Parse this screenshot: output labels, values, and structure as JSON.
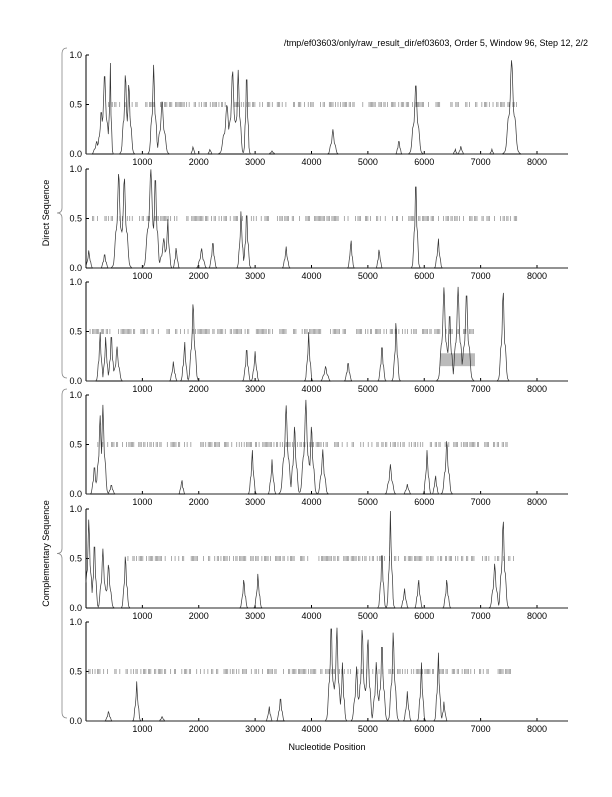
{
  "title": "/tmp/ef03603/only/raw_result_dir/ef03603, Order 5, Window 96, Step 12, 2/2",
  "xlabel": "Nucleotide Position",
  "group_labels": [
    "Direct Sequence",
    "Complementary Sequence"
  ],
  "chart_data": {
    "type": "line",
    "title": "/tmp/ef03603/only/raw_result_dir/ef03603, Order 5, Window 96, Step 12, 2/2",
    "xlabel": "Nucleotide Position",
    "xlim": [
      0,
      8550
    ],
    "ylim": [
      0,
      1
    ],
    "x_ticks": [
      1000,
      2000,
      3000,
      4000,
      5000,
      6000,
      7000,
      8000
    ],
    "y_ticks": [
      "0.0",
      "0.5",
      "1.0"
    ],
    "colors": {
      "curve": "#333333",
      "ticks": "#888888",
      "highlight": "#bbbbbb"
    },
    "panels": [
      {
        "group": "Direct Sequence",
        "tick_range": [
          400,
          7650
        ],
        "peaks": [
          [
            190,
            0.13,
            40
          ],
          [
            270,
            0.45,
            40
          ],
          [
            330,
            0.82,
            50
          ],
          [
            430,
            0.95,
            20
          ],
          [
            700,
            0.82,
            40
          ],
          [
            760,
            0.72,
            40
          ],
          [
            1200,
            0.9,
            40
          ],
          [
            1350,
            0.55,
            50
          ],
          [
            1900,
            0.08,
            20
          ],
          [
            2200,
            0.05,
            20
          ],
          [
            2500,
            0.5,
            60
          ],
          [
            2600,
            0.85,
            50
          ],
          [
            2700,
            0.85,
            40
          ],
          [
            2850,
            0.9,
            25
          ],
          [
            3300,
            0.03,
            30
          ],
          [
            4380,
            0.25,
            40
          ],
          [
            5550,
            0.15,
            25
          ],
          [
            5850,
            0.72,
            50
          ],
          [
            6550,
            0.05,
            20
          ],
          [
            6650,
            0.08,
            25
          ],
          [
            7200,
            0.05,
            20
          ],
          [
            7550,
            0.95,
            60
          ]
        ]
      },
      {
        "group": "Direct Sequence",
        "tick_range": [
          50,
          7650
        ],
        "peaks": [
          [
            50,
            0.18,
            30
          ],
          [
            330,
            0.15,
            30
          ],
          [
            580,
            0.97,
            50
          ],
          [
            680,
            0.92,
            50
          ],
          [
            1150,
            1.0,
            60
          ],
          [
            1230,
            0.95,
            40
          ],
          [
            1380,
            0.3,
            50
          ],
          [
            1450,
            0.5,
            30
          ],
          [
            1600,
            0.22,
            25
          ],
          [
            2050,
            0.2,
            40
          ],
          [
            2250,
            0.28,
            30
          ],
          [
            2750,
            0.58,
            30
          ],
          [
            2850,
            0.6,
            30
          ],
          [
            3550,
            0.22,
            30
          ],
          [
            4700,
            0.3,
            25
          ],
          [
            5200,
            0.2,
            25
          ],
          [
            5850,
            0.93,
            30
          ],
          [
            6250,
            0.3,
            30
          ]
        ]
      },
      {
        "group": "Direct Sequence",
        "tick_range": [
          50,
          6900
        ],
        "highlight": [
          6280,
          6900,
          0.15,
          0.28
        ],
        "peaks": [
          [
            250,
            0.5,
            30
          ],
          [
            350,
            0.45,
            30
          ],
          [
            450,
            0.5,
            30
          ],
          [
            550,
            0.35,
            40
          ],
          [
            1550,
            0.2,
            30
          ],
          [
            1750,
            0.4,
            30
          ],
          [
            1900,
            0.8,
            40
          ],
          [
            2850,
            0.35,
            30
          ],
          [
            3000,
            0.3,
            30
          ],
          [
            3950,
            0.5,
            30
          ],
          [
            4250,
            0.15,
            40
          ],
          [
            4650,
            0.2,
            30
          ],
          [
            5250,
            0.38,
            30
          ],
          [
            5500,
            0.62,
            30
          ],
          [
            6350,
            0.95,
            50
          ],
          [
            6450,
            0.7,
            40
          ],
          [
            6600,
            0.95,
            50
          ],
          [
            6750,
            0.9,
            50
          ],
          [
            7400,
            0.92,
            40
          ]
        ]
      },
      {
        "group": "Complementary Sequence",
        "tick_range": [
          100,
          7500
        ],
        "peaks": [
          [
            150,
            0.3,
            30
          ],
          [
            250,
            0.8,
            40
          ],
          [
            300,
            0.9,
            40
          ],
          [
            450,
            0.1,
            30
          ],
          [
            1700,
            0.15,
            25
          ],
          [
            2950,
            0.45,
            30
          ],
          [
            3300,
            0.35,
            30
          ],
          [
            3550,
            0.9,
            50
          ],
          [
            3700,
            0.7,
            40
          ],
          [
            3900,
            0.95,
            50
          ],
          [
            4000,
            0.7,
            40
          ],
          [
            4200,
            0.45,
            40
          ],
          [
            5400,
            0.3,
            40
          ],
          [
            5700,
            0.1,
            30
          ],
          [
            6050,
            0.45,
            30
          ],
          [
            6200,
            0.2,
            25
          ],
          [
            6400,
            0.55,
            40
          ]
        ]
      },
      {
        "group": "Complementary Sequence",
        "tick_range": [
          700,
          7600
        ],
        "peaks": [
          [
            50,
            0.9,
            40
          ],
          [
            150,
            0.7,
            30
          ],
          [
            300,
            0.6,
            40
          ],
          [
            400,
            0.45,
            40
          ],
          [
            700,
            0.55,
            30
          ],
          [
            2800,
            0.3,
            30
          ],
          [
            3050,
            0.35,
            30
          ],
          [
            5250,
            0.6,
            30
          ],
          [
            5400,
            0.98,
            30
          ],
          [
            5650,
            0.2,
            30
          ],
          [
            5900,
            0.3,
            30
          ],
          [
            6400,
            0.3,
            30
          ],
          [
            7250,
            0.45,
            40
          ],
          [
            7400,
            0.9,
            40
          ]
        ]
      },
      {
        "group": "Complementary Sequence",
        "tick_range": [
          50,
          7550
        ],
        "peaks": [
          [
            400,
            0.1,
            30
          ],
          [
            900,
            0.4,
            30
          ],
          [
            1350,
            0.05,
            25
          ],
          [
            3250,
            0.15,
            25
          ],
          [
            3450,
            0.25,
            30
          ],
          [
            4350,
            1.0,
            40
          ],
          [
            4450,
            0.95,
            40
          ],
          [
            4550,
            0.6,
            30
          ],
          [
            4800,
            0.55,
            40
          ],
          [
            4900,
            0.95,
            40
          ],
          [
            5000,
            0.85,
            40
          ],
          [
            5150,
            0.6,
            40
          ],
          [
            5250,
            0.8,
            40
          ],
          [
            5450,
            0.9,
            40
          ],
          [
            5700,
            0.3,
            30
          ],
          [
            5950,
            0.6,
            30
          ],
          [
            6250,
            0.7,
            30
          ],
          [
            6350,
            0.2,
            25
          ]
        ]
      }
    ]
  }
}
